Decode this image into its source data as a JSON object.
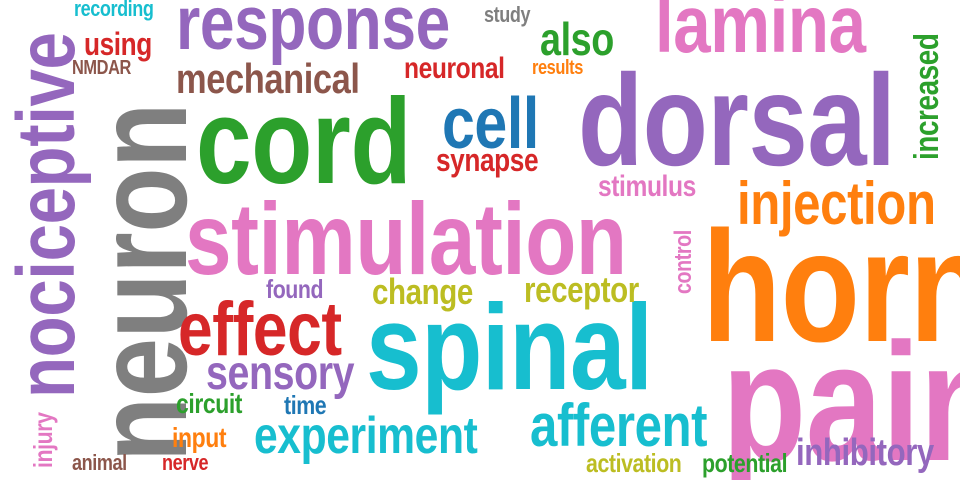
{
  "words": [
    {
      "text": "response",
      "color": "#9467bd"
    },
    {
      "text": "lamina",
      "color": "#e377c2"
    },
    {
      "text": "dorsal",
      "color": "#9467bd"
    },
    {
      "text": "cord",
      "color": "#2ca02c"
    },
    {
      "text": "stimulation",
      "color": "#e377c2"
    },
    {
      "text": "horn",
      "color": "#ff7f0e"
    },
    {
      "text": "spinal",
      "color": "#17becf"
    },
    {
      "text": "pain",
      "color": "#e377c2"
    },
    {
      "text": "neuron",
      "color": "#7f7f7f"
    },
    {
      "text": "nociceptive",
      "color": "#9467bd"
    },
    {
      "text": "effect",
      "color": "#d62728"
    },
    {
      "text": "experiment",
      "color": "#17becf"
    },
    {
      "text": "afferent",
      "color": "#17becf"
    },
    {
      "text": "injection",
      "color": "#ff7f0e"
    },
    {
      "text": "mechanical",
      "color": "#8c564b"
    },
    {
      "text": "cell",
      "color": "#1f77b4"
    },
    {
      "text": "sensory",
      "color": "#9467bd"
    },
    {
      "text": "increased",
      "color": "#2ca02c"
    },
    {
      "text": "also",
      "color": "#2ca02c"
    },
    {
      "text": "inhibitory",
      "color": "#9467bd"
    },
    {
      "text": "synapse",
      "color": "#d62728"
    },
    {
      "text": "neuronal",
      "color": "#d62728"
    },
    {
      "text": "receptor",
      "color": "#bcbd22"
    },
    {
      "text": "change",
      "color": "#bcbd22"
    },
    {
      "text": "using",
      "color": "#d62728"
    },
    {
      "text": "stimulus",
      "color": "#e377c2"
    },
    {
      "text": "circuit",
      "color": "#2ca02c"
    },
    {
      "text": "input",
      "color": "#ff7f0e"
    },
    {
      "text": "found",
      "color": "#9467bd"
    },
    {
      "text": "time",
      "color": "#1f77b4"
    },
    {
      "text": "injury",
      "color": "#e377c2"
    },
    {
      "text": "control",
      "color": "#e377c2"
    },
    {
      "text": "recording",
      "color": "#17becf"
    },
    {
      "text": "study",
      "color": "#7f7f7f"
    },
    {
      "text": "results",
      "color": "#ff7f0e"
    },
    {
      "text": "NMDAR",
      "color": "#8c564b"
    },
    {
      "text": "animal",
      "color": "#8c564b"
    },
    {
      "text": "nerve",
      "color": "#d62728"
    },
    {
      "text": "activation",
      "color": "#bcbd22"
    },
    {
      "text": "potential",
      "color": "#2ca02c"
    }
  ]
}
